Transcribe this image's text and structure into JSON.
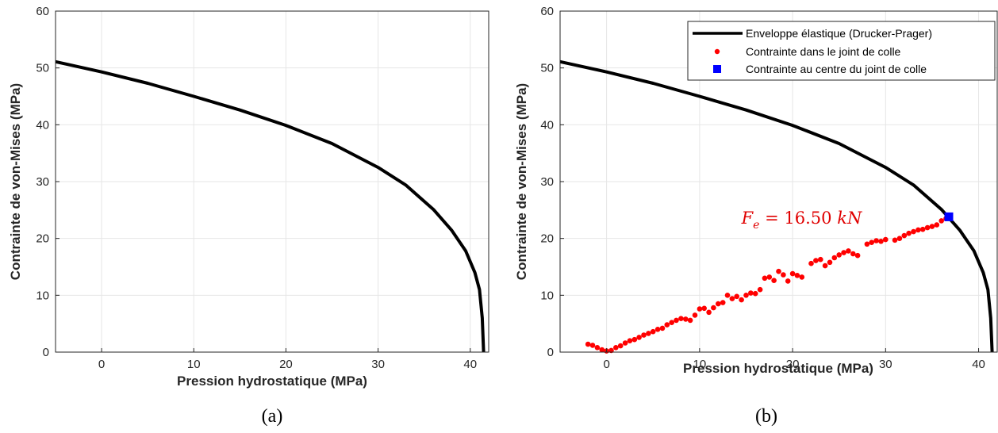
{
  "chart_data": [
    {
      "type": "line",
      "panel": "a",
      "caption": "(a)",
      "xlabel": "Pression hydrostatique (MPa)",
      "ylabel": "Contrainte de von-Mises (MPa)",
      "xlim": [
        -5,
        42
      ],
      "ylim": [
        0,
        60
      ],
      "xticks": [
        "0",
        "10",
        "20",
        "30",
        "40"
      ],
      "yticks": [
        "0",
        "10",
        "20",
        "30",
        "40",
        "50",
        "60"
      ],
      "grid": true,
      "series": [
        {
          "color": "#000000",
          "x": [
            -5,
            0,
            5,
            10,
            15,
            20,
            25,
            30,
            33,
            36,
            38,
            39.5,
            40.5,
            41.0,
            41.3,
            41.45
          ],
          "y": [
            51.1,
            49.3,
            47.3,
            45.0,
            42.6,
            39.9,
            36.7,
            32.5,
            29.4,
            25.1,
            21.4,
            17.8,
            14.0,
            11.0,
            6.0,
            0.0
          ]
        }
      ]
    },
    {
      "type": "scatter",
      "panel": "b",
      "caption": "(b)",
      "xlabel": "Pression hydrostatique (MPa)",
      "ylabel": "Contrainte de von-Mises (MPa)",
      "xlim": [
        -5,
        42
      ],
      "ylim": [
        0,
        60
      ],
      "xticks": [
        "0",
        "10",
        "20",
        "30",
        "40"
      ],
      "yticks": [
        "0",
        "10",
        "20",
        "30",
        "40",
        "50",
        "60"
      ],
      "grid": true,
      "legend_position": "top-right",
      "annotation": {
        "text": "F_e = 16.50 kN",
        "color": "#e00000",
        "x": 14.5,
        "y": 22.6
      },
      "series": [
        {
          "name": "Enveloppe élastique (Drucker-Prager)",
          "kind": "line",
          "color": "#000000",
          "x": [
            -5,
            0,
            5,
            10,
            15,
            20,
            25,
            30,
            33,
            36,
            38,
            39.5,
            40.5,
            41.0,
            41.3,
            41.45
          ],
          "y": [
            51.1,
            49.3,
            47.3,
            45.0,
            42.6,
            39.9,
            36.7,
            32.5,
            29.4,
            25.1,
            21.4,
            17.8,
            14.0,
            11.0,
            6.0,
            0.0
          ]
        },
        {
          "name": "Contrainte dans le joint de colle",
          "kind": "scatter",
          "color": "#ff0000",
          "x": [
            -2.0,
            -1.5,
            -1.0,
            -0.5,
            0.0,
            0.5,
            1.0,
            1.5,
            2.0,
            2.5,
            3.0,
            3.5,
            4.0,
            4.5,
            5.0,
            5.5,
            6.0,
            6.5,
            7.0,
            7.5,
            8.0,
            8.5,
            9.0,
            9.5,
            10.0,
            10.5,
            11.0,
            11.5,
            12.0,
            12.5,
            13.0,
            13.5,
            14.0,
            14.5,
            15.0,
            15.5,
            16.0,
            16.5,
            17.0,
            17.5,
            18.0,
            18.5,
            19.0,
            19.5,
            20.0,
            20.5,
            21.0,
            22.0,
            22.5,
            23.0,
            23.5,
            24.0,
            24.5,
            25.0,
            25.5,
            26.0,
            26.5,
            27.0,
            28.0,
            28.5,
            29.0,
            29.5,
            30.0,
            31.0,
            31.5,
            32.0,
            32.5,
            33.0,
            33.5,
            34.0,
            34.5,
            35.0,
            35.5,
            36.0,
            36.5
          ],
          "y": [
            1.4,
            1.2,
            0.8,
            0.4,
            0.2,
            0.3,
            0.8,
            1.1,
            1.6,
            2.0,
            2.2,
            2.6,
            3.0,
            3.3,
            3.6,
            4.0,
            4.2,
            4.8,
            5.2,
            5.6,
            5.9,
            5.8,
            5.6,
            6.5,
            7.6,
            7.7,
            7.0,
            7.8,
            8.5,
            8.7,
            10.0,
            9.4,
            9.8,
            9.2,
            10.0,
            10.4,
            10.3,
            11.0,
            13.0,
            13.2,
            12.6,
            14.2,
            13.6,
            12.5,
            13.8,
            13.5,
            13.2,
            15.6,
            16.1,
            16.3,
            15.2,
            15.8,
            16.6,
            17.1,
            17.5,
            17.8,
            17.3,
            17.0,
            19.0,
            19.3,
            19.6,
            19.5,
            19.8,
            19.7,
            20.0,
            20.5,
            20.9,
            21.2,
            21.5,
            21.6,
            21.9,
            22.1,
            22.4,
            23.1,
            23.5
          ]
        },
        {
          "name": "Contrainte au centre du joint de colle",
          "kind": "square",
          "color": "#0000ff",
          "x": [
            36.8
          ],
          "y": [
            23.8
          ]
        }
      ]
    }
  ]
}
